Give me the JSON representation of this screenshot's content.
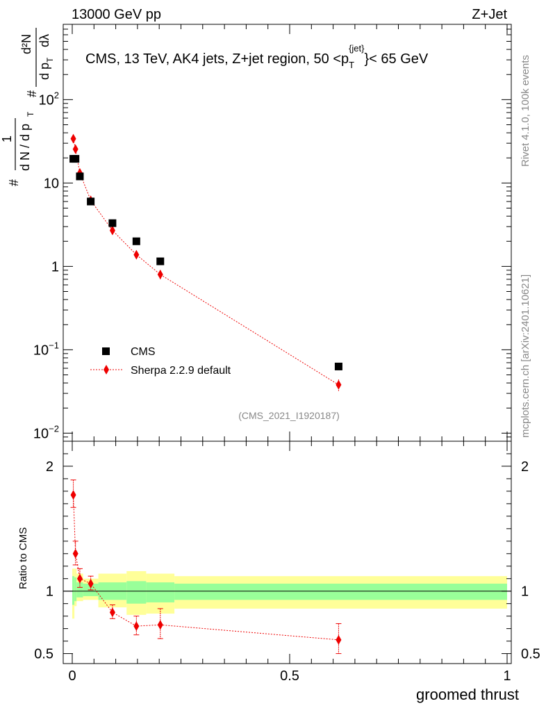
{
  "header": {
    "left": "13000 GeV pp",
    "right": "Z+Jet"
  },
  "side": {
    "rivet": "Rivet 4.1.0,  100k events",
    "mcplots": "mcplots.cern.ch [arXiv:2401.10621]"
  },
  "analysis_label": "(CMS_2021_I1920187)",
  "title": {
    "main": "CMS, 13 TeV, AK4 jets, Z+jet region, 50 <p",
    "sub": "T",
    "sup": "{jet}",
    "tail": "}< 65 GeV"
  },
  "y_axis_label": {
    "hash": "#",
    "one": "1",
    "dN": "d N / d p",
    "T": "T",
    "hash2": "#",
    "d2N": "d²N",
    "dpt": "d p",
    "T2": "T",
    "dl": "dλ"
  },
  "colors": {
    "cms": "#000000",
    "sherpa": "#ee0000",
    "band_inner": "#99ff99",
    "band_outer": "#ffff99"
  },
  "chart_data": [
    {
      "type": "scatter",
      "panel": "main",
      "yscale": "log",
      "xlim": [
        0,
        1
      ],
      "ylim": [
        0.008,
        800
      ],
      "y_ticks": [
        {
          "value": 0.01,
          "label": "10",
          "sup": "−2"
        },
        {
          "value": 0.1,
          "label": "10",
          "sup": "−1"
        },
        {
          "value": 1,
          "label": "1",
          "sup": ""
        },
        {
          "value": 10,
          "label": "10",
          "sup": ""
        },
        {
          "value": 100,
          "label": "10",
          "sup": "2"
        }
      ],
      "series": [
        {
          "name": "CMS",
          "marker": "square",
          "x": [
            0.0025,
            0.0075,
            0.0175,
            0.0425,
            0.0925,
            0.1475,
            0.2025,
            0.6125
          ],
          "y": [
            19.5,
            19.5,
            12.0,
            6.0,
            3.3,
            2.0,
            1.15,
            0.063
          ]
        },
        {
          "name": "Sherpa 2.2.9 default",
          "marker": "diamond",
          "x": [
            0.0025,
            0.0075,
            0.0175,
            0.0425,
            0.0925,
            0.1475,
            0.2025,
            0.6125
          ],
          "y": [
            34,
            25.5,
            13.2,
            6.2,
            2.7,
            1.38,
            0.8,
            0.038
          ],
          "err_low": [
            2,
            1.8,
            1,
            0.4,
            0.2,
            0.13,
            0.1,
            0.006
          ],
          "err_high": [
            2,
            1.8,
            1,
            0.4,
            0.2,
            0.13,
            0.1,
            0.006
          ]
        }
      ],
      "legend": {
        "position": "bottom-left",
        "entries": [
          "CMS",
          "Sherpa 2.2.9 default"
        ]
      }
    },
    {
      "type": "line",
      "panel": "ratio",
      "ylabel": "Ratio to CMS",
      "xlabel": "groomed thrust",
      "xlim": [
        0,
        1
      ],
      "ylim": [
        0.42,
        2.2
      ],
      "x_ticks": [
        {
          "value": 0,
          "label": "0"
        },
        {
          "value": 0.5,
          "label": "0.5"
        },
        {
          "value": 1,
          "label": "1"
        }
      ],
      "y_ticks": [
        {
          "value": 0.5,
          "label": "0.5"
        },
        {
          "value": 1,
          "label": "1"
        },
        {
          "value": 2,
          "label": "2"
        }
      ],
      "bands": {
        "edges": [
          0,
          0.005,
          0.01,
          0.025,
          0.06,
          0.125,
          0.17,
          0.235,
          1.0
        ],
        "outer_low": [
          0.78,
          0.88,
          0.92,
          0.93,
          0.87,
          0.81,
          0.82,
          0.86
        ],
        "outer_high": [
          1.18,
          1.18,
          1.14,
          1.1,
          1.14,
          1.16,
          1.14,
          1.12
        ],
        "inner_low": [
          0.89,
          0.92,
          0.95,
          0.96,
          0.93,
          0.9,
          0.91,
          0.93
        ],
        "inner_high": [
          1.12,
          1.11,
          1.07,
          1.06,
          1.07,
          1.08,
          1.07,
          1.06
        ]
      },
      "series": [
        {
          "name": "Sherpa 2.2.9 default",
          "x": [
            0.0025,
            0.0075,
            0.0175,
            0.0425,
            0.0925,
            0.1475,
            0.2025,
            0.6125
          ],
          "y": [
            1.77,
            1.3,
            1.1,
            1.06,
            0.83,
            0.72,
            0.73,
            0.61
          ],
          "err_low": [
            0.1,
            0.09,
            0.07,
            0.05,
            0.05,
            0.07,
            0.11,
            0.11
          ],
          "err_high": [
            0.12,
            0.1,
            0.08,
            0.06,
            0.06,
            0.08,
            0.13,
            0.13
          ]
        }
      ]
    }
  ]
}
